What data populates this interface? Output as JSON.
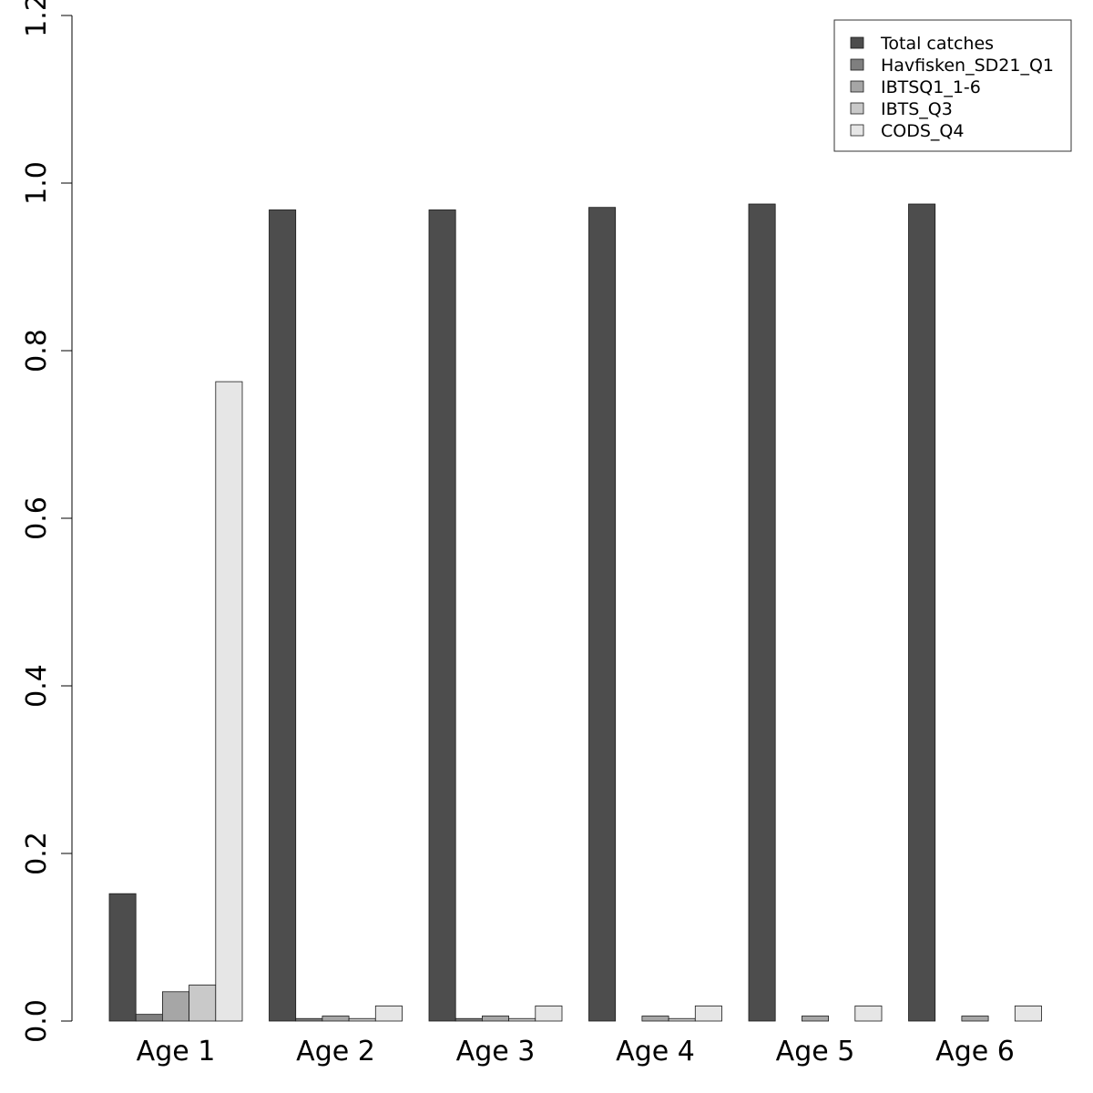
{
  "chart_data": {
    "type": "bar",
    "categories": [
      "Age 1",
      "Age 2",
      "Age 3",
      "Age 4",
      "Age 5",
      "Age 6"
    ],
    "series": [
      {
        "name": "Total catches",
        "color": "#4d4d4d",
        "values": [
          0.152,
          0.968,
          0.968,
          0.971,
          0.975,
          0.975
        ]
      },
      {
        "name": "Havfisken_SD21_Q1",
        "color": "#7f7f7f",
        "values": [
          0.008,
          0.003,
          0.003,
          0.0,
          0.0,
          0.0
        ]
      },
      {
        "name": "IBTSQ1_1-6",
        "color": "#a6a6a6",
        "values": [
          0.035,
          0.006,
          0.006,
          0.006,
          0.006,
          0.006
        ]
      },
      {
        "name": "IBTS_Q3",
        "color": "#c9c9c9",
        "values": [
          0.043,
          0.003,
          0.003,
          0.003,
          0.0,
          0.0
        ]
      },
      {
        "name": "CODS_Q4",
        "color": "#e6e6e6",
        "values": [
          0.763,
          0.018,
          0.018,
          0.018,
          0.018,
          0.018
        ]
      }
    ],
    "ylim": [
      0,
      1.2
    ],
    "yticks": [
      "0.0",
      "0.2",
      "0.4",
      "0.6",
      "0.8",
      "1.0",
      "1.2"
    ],
    "title": "",
    "xlabel": "",
    "ylabel": "",
    "grid": false,
    "legend_position": "top-right"
  }
}
